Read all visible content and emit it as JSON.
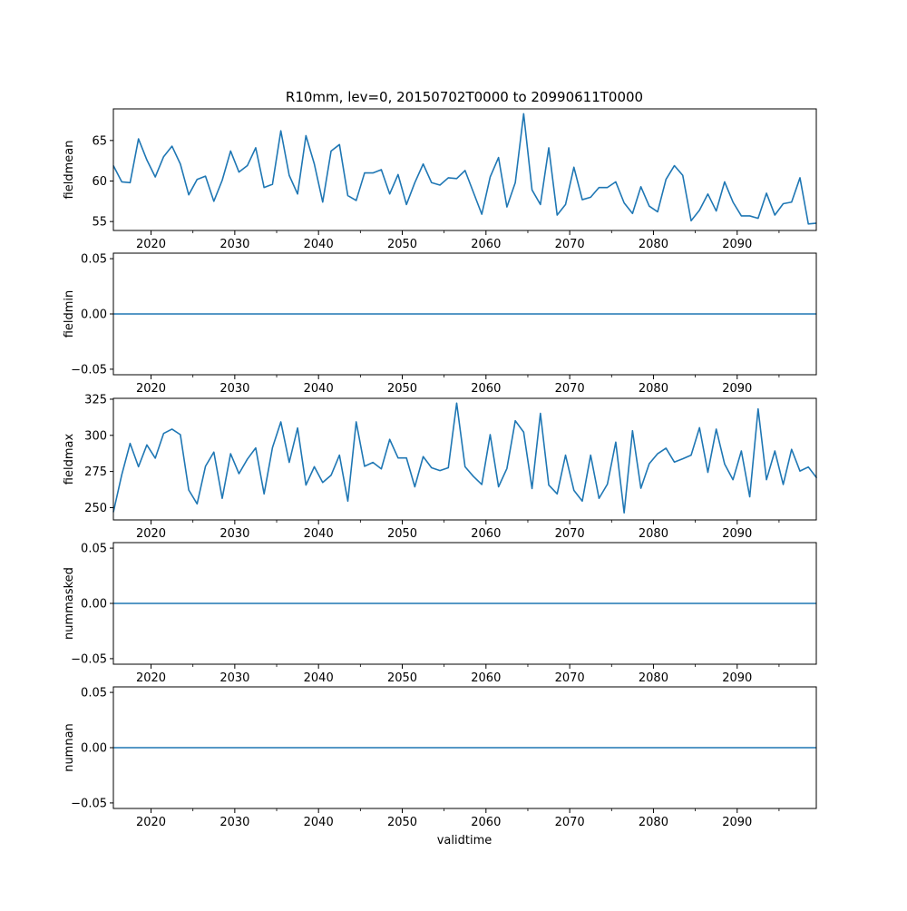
{
  "chart_data": [
    {
      "type": "line",
      "title": "R10mm, lev=0, 20150702T0000 to 20990611T0000",
      "ylabel": "fieldmean",
      "xlabel": "",
      "ylim": [
        53.9,
        68.9
      ],
      "yticks": [
        55,
        60,
        65
      ],
      "ytick_labels": [
        "55",
        "60",
        "65"
      ],
      "color": "#1f77b4",
      "x_start": 2015.5,
      "x_step": 1,
      "values": [
        61.9,
        59.9,
        59.8,
        65.2,
        62.6,
        60.5,
        63.0,
        64.3,
        62.1,
        58.3,
        60.2,
        60.6,
        57.5,
        60.1,
        63.7,
        61.1,
        61.9,
        64.1,
        59.2,
        59.6,
        66.2,
        60.7,
        58.4,
        65.6,
        62.1,
        57.4,
        63.7,
        64.5,
        58.2,
        57.6,
        61.0,
        61.0,
        61.4,
        58.4,
        60.8,
        57.1,
        59.8,
        62.1,
        59.8,
        59.5,
        60.4,
        60.3,
        61.3,
        58.6,
        55.9,
        60.5,
        62.9,
        56.8,
        59.8,
        68.3,
        58.9,
        57.1,
        64.1,
        55.8,
        57.1,
        61.7,
        57.7,
        58.0,
        59.2,
        59.2,
        59.9,
        57.3,
        56.0,
        59.3,
        56.9,
        56.2,
        60.2,
        61.9,
        60.7,
        55.1,
        56.4,
        58.4,
        56.3,
        59.9,
        57.4,
        55.7,
        55.7,
        55.4,
        58.5,
        55.8,
        57.2,
        57.4,
        60.4,
        54.7,
        54.8
      ]
    },
    {
      "type": "line",
      "ylabel": "fieldmin",
      "xlabel": "",
      "ylim": [
        -0.055,
        0.055
      ],
      "yticks": [
        -0.05,
        0,
        0.05
      ],
      "ytick_labels": [
        "−0.05",
        "0.00",
        "0.05"
      ],
      "color": "#1f77b4",
      "constant_value": 0
    },
    {
      "type": "line",
      "ylabel": "fieldmax",
      "xlabel": "",
      "ylim": [
        241.5,
        325.6
      ],
      "yticks": [
        250,
        275,
        300,
        325
      ],
      "ytick_labels": [
        "250",
        "275",
        "300",
        "325"
      ],
      "color": "#1f77b4",
      "x_start": 2015.5,
      "x_step": 1,
      "values": [
        246.9,
        272.7,
        294.4,
        278.3,
        293.4,
        284.2,
        301.3,
        304.3,
        300.5,
        262.2,
        252.6,
        278.6,
        288.4,
        256.4,
        287.3,
        273.5,
        283.5,
        291.3,
        259.5,
        291.5,
        309.3,
        281.3,
        305.1,
        265.6,
        278.3,
        267.4,
        272.4,
        286.3,
        254.5,
        309.3,
        278.6,
        281.3,
        276.8,
        297.2,
        284.4,
        284.4,
        264.4,
        285.3,
        277.6,
        275.6,
        277.6,
        322.3,
        278.3,
        271.6,
        266.0,
        300.5,
        264.4,
        277.1,
        310.1,
        302.2,
        263.2,
        315.2,
        265.6,
        259.5,
        286.3,
        262.0,
        254.5,
        286.3,
        256.4,
        266.2,
        295.3,
        246.4,
        303.2,
        263.4,
        280.4,
        287.3,
        291.1,
        281.5,
        283.8,
        286.3,
        305.3,
        274.4,
        304.3,
        280.2,
        269.3,
        289.2,
        257.5,
        318.3,
        269.3,
        289.2,
        266.0,
        290.3,
        275.3,
        278.1,
        270.5
      ]
    },
    {
      "type": "line",
      "ylabel": "nummasked",
      "xlabel": "",
      "ylim": [
        -0.055,
        0.055
      ],
      "yticks": [
        -0.05,
        0,
        0.05
      ],
      "ytick_labels": [
        "−0.05",
        "0.00",
        "0.05"
      ],
      "color": "#1f77b4",
      "constant_value": 0
    },
    {
      "type": "line",
      "ylabel": "numnan",
      "xlabel": "validtime",
      "ylim": [
        -0.055,
        0.055
      ],
      "yticks": [
        -0.05,
        0,
        0.05
      ],
      "ytick_labels": [
        "−0.05",
        "0.00",
        "0.05"
      ],
      "color": "#1f77b4",
      "constant_value": 0
    }
  ],
  "xaxis": {
    "xlim": [
      2015.5,
      2099.45
    ],
    "major_ticks": [
      2020,
      2030,
      2040,
      2050,
      2060,
      2070,
      2080,
      2090
    ],
    "major_labels": [
      "2020",
      "2030",
      "2040",
      "2050",
      "2060",
      "2070",
      "2080",
      "2090"
    ],
    "minor_ticks": [
      2025,
      2035,
      2045,
      2055,
      2065,
      2075,
      2085,
      2095
    ]
  }
}
